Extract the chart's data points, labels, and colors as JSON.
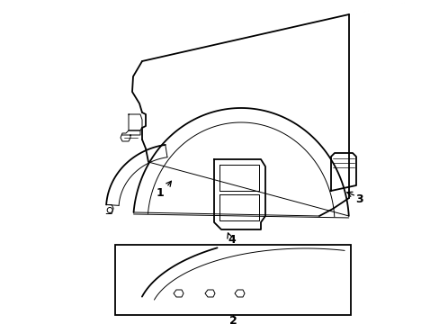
{
  "bg_color": "#ffffff",
  "line_color": "#000000",
  "figsize": [
    4.89,
    3.6
  ],
  "dpi": 100,
  "lw_main": 1.3,
  "lw_thin": 0.7,
  "lw_thick": 1.8
}
